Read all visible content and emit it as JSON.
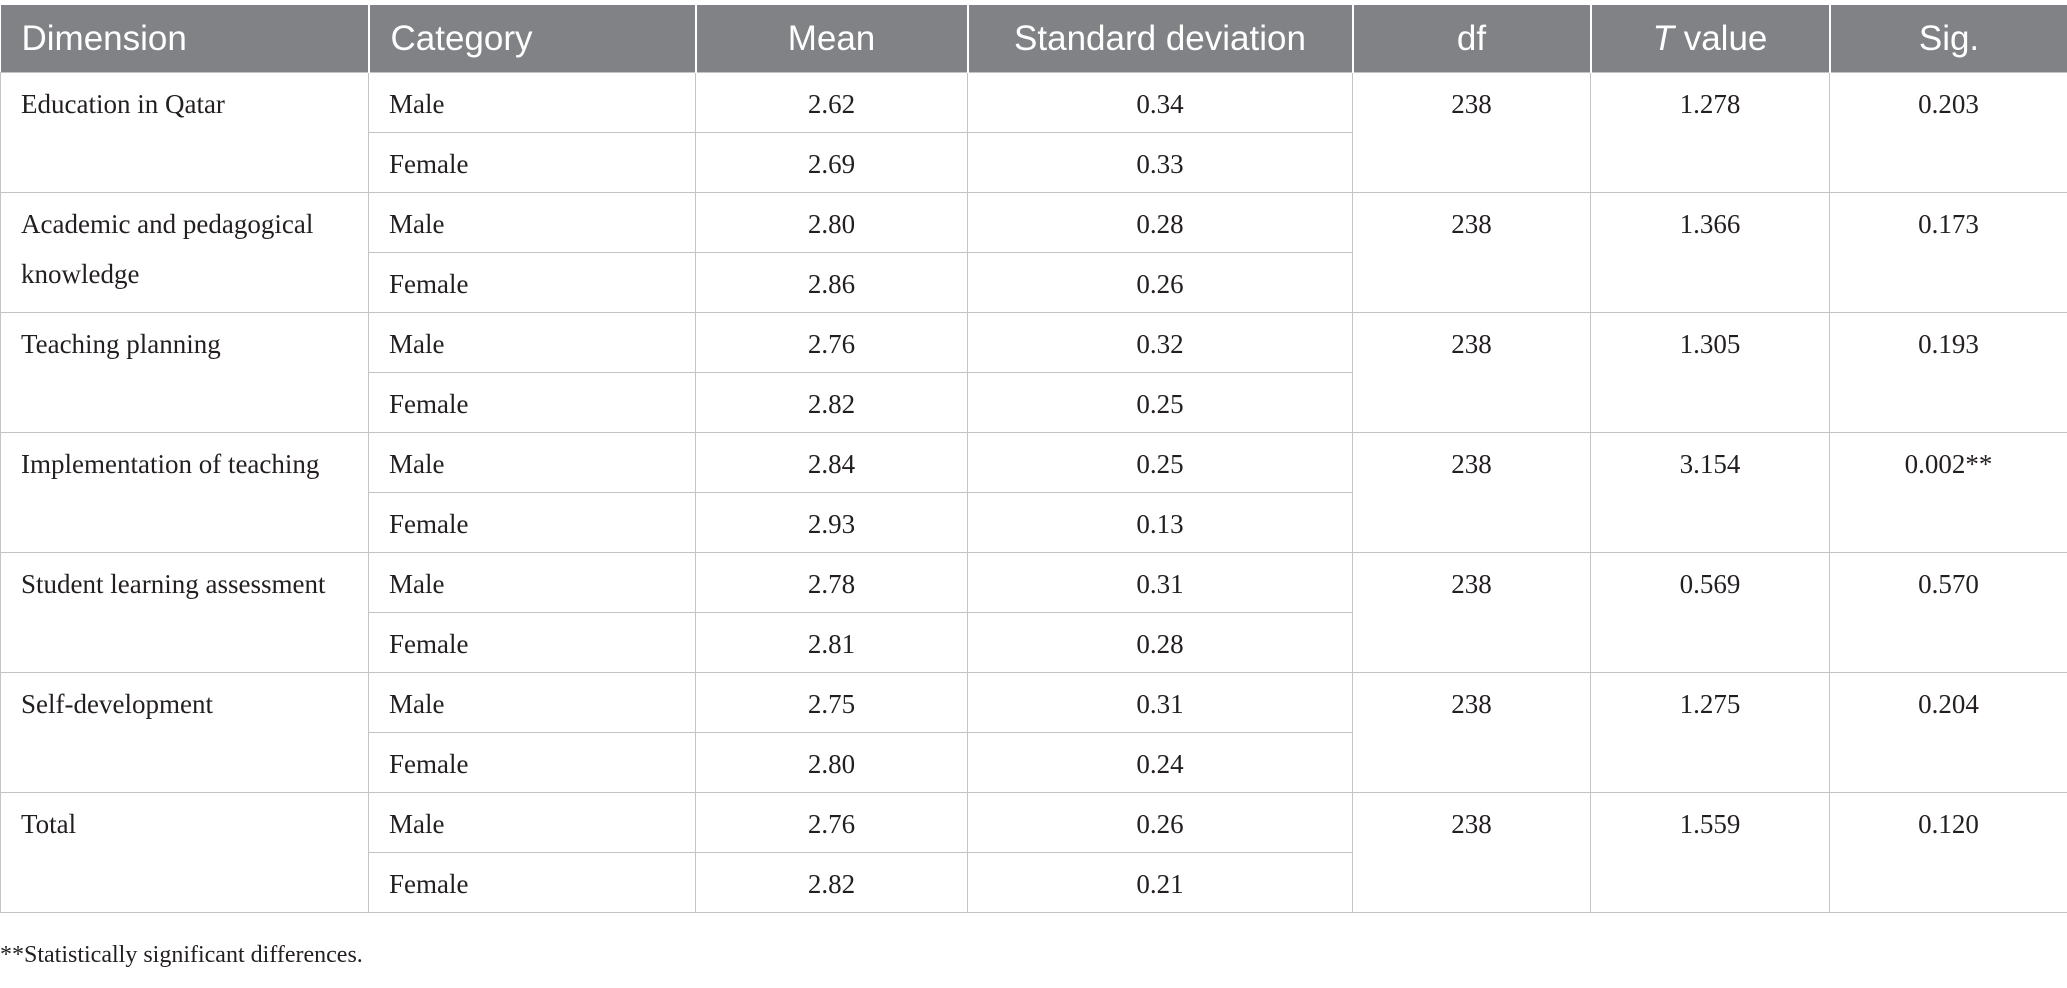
{
  "table": {
    "headers": {
      "dimension": "Dimension",
      "category": "Category",
      "mean": "Mean",
      "sd": "Standard deviation",
      "df": "df",
      "t_italic": "T",
      "t_rest": " value",
      "sig": "Sig."
    },
    "rows": [
      {
        "dimension": "Education in Qatar",
        "df": "238",
        "t": "1.278",
        "sig": "0.203",
        "male": {
          "category": "Male",
          "mean": "2.62",
          "sd": "0.34"
        },
        "female": {
          "category": "Female",
          "mean": "2.69",
          "sd": "0.33"
        }
      },
      {
        "dimension": "Academic and pedagogical knowledge",
        "df": "238",
        "t": "1.366",
        "sig": "0.173",
        "male": {
          "category": "Male",
          "mean": "2.80",
          "sd": "0.28"
        },
        "female": {
          "category": "Female",
          "mean": "2.86",
          "sd": "0.26"
        }
      },
      {
        "dimension": "Teaching planning",
        "df": "238",
        "t": "1.305",
        "sig": "0.193",
        "male": {
          "category": "Male",
          "mean": "2.76",
          "sd": "0.32"
        },
        "female": {
          "category": "Female",
          "mean": "2.82",
          "sd": "0.25"
        }
      },
      {
        "dimension": "Implementation of teaching",
        "df": "238",
        "t": "3.154",
        "sig": "0.002**",
        "male": {
          "category": "Male",
          "mean": "2.84",
          "sd": "0.25"
        },
        "female": {
          "category": "Female",
          "mean": "2.93",
          "sd": "0.13"
        }
      },
      {
        "dimension": "Student learning assessment",
        "df": "238",
        "t": "0.569",
        "sig": "0.570",
        "male": {
          "category": "Male",
          "mean": "2.78",
          "sd": "0.31"
        },
        "female": {
          "category": "Female",
          "mean": "2.81",
          "sd": "0.28"
        }
      },
      {
        "dimension": "Self-development",
        "df": "238",
        "t": "1.275",
        "sig": "0.204",
        "male": {
          "category": "Male",
          "mean": "2.75",
          "sd": "0.31"
        },
        "female": {
          "category": "Female",
          "mean": "2.80",
          "sd": "0.24"
        }
      },
      {
        "dimension": "Total",
        "df": "238",
        "t": "1.559",
        "sig": "0.120",
        "male": {
          "category": "Male",
          "mean": "2.76",
          "sd": "0.26"
        },
        "female": {
          "category": "Female",
          "mean": "2.82",
          "sd": "0.21"
        }
      }
    ]
  },
  "footnote": "**Statistically significant differences."
}
